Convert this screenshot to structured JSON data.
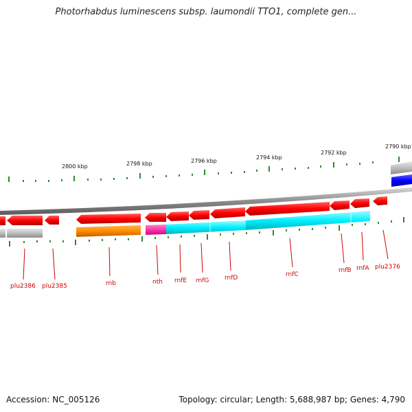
{
  "title": "Photorhabdus luminescens subsp. laumondii TTO1, complete gen...",
  "footer": {
    "accession": "Accession: NC_005126",
    "info": "Topology: circular; Length: 5,688,987 bp; Genes: 4,790"
  },
  "scale": {
    "unit": "kbp",
    "labels": [
      "2800 kbp",
      "2798 kbp",
      "2796 kbp",
      "2794 kbp",
      "2792 kbp",
      "2790 kbp"
    ]
  },
  "genes": [
    {
      "name": "plu2386",
      "color": "#9e9e9e",
      "strand": "forward-track"
    },
    {
      "name": "plu2385",
      "color": "#ff0000",
      "strand": "forward-track"
    },
    {
      "name": "rnb",
      "color": "#ff8800",
      "strand": "reverse-track"
    },
    {
      "name": "nth",
      "color": "#ff33aa",
      "strand": "reverse-track"
    },
    {
      "name": "rnfE",
      "color": "#00e5ee",
      "strand": "reverse-track"
    },
    {
      "name": "rnfG",
      "color": "#00e5ee",
      "strand": "reverse-track"
    },
    {
      "name": "rnfD",
      "color": "#00e5ee",
      "strand": "reverse-track"
    },
    {
      "name": "rnfC",
      "color": "#00e5ee",
      "strand": "reverse-track"
    },
    {
      "name": "rnfB",
      "color": "#00e5ee",
      "strand": "reverse-track"
    },
    {
      "name": "rnfA",
      "color": "#00e5ee",
      "strand": "reverse-track"
    },
    {
      "name": "plu2376",
      "color": "#ff0000",
      "strand": "forward-track"
    }
  ],
  "colors": {
    "forward_cds": "#ff0000",
    "pseudo_or_other": "#b5b5b5",
    "rnb": "#ff8800",
    "nth": "#ff33aa",
    "rnf_operon": "#00e5ee",
    "highlight": "#0000ff",
    "backbone": "#888888",
    "tick": "#1f8a1f",
    "label": "#cc0000"
  }
}
